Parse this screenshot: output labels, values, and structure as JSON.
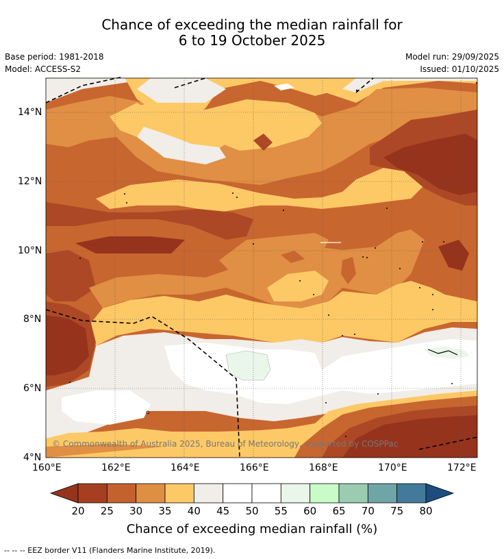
{
  "title_line1": "Chance of exceeding the median rainfall for",
  "title_line2": "6 to 19 October 2025",
  "base_period": "Base period: 1981-2018",
  "model": "Model: ACCESS-S2",
  "model_run": "Model run: 29/09/2025",
  "issued": "Issued: 01/10/2025",
  "copyright": "© Commonwealth of Australia 2025, Bureau of Meteorology, supported by COSPPac",
  "x_ticks": [
    "160°E",
    "162°E",
    "164°E",
    "166°E",
    "168°E",
    "170°E",
    "172°E"
  ],
  "y_ticks": [
    "14°N",
    "12°N",
    "10°N",
    "8°N",
    "6°N",
    "4°N"
  ],
  "colorbar": {
    "title": "Chance of exceeding median rainfall (%)",
    "labels": [
      "20",
      "25",
      "30",
      "35",
      "40",
      "45",
      "50",
      "55",
      "60",
      "65",
      "70",
      "75",
      "80"
    ],
    "colors": [
      "#a63f20",
      "#c4622e",
      "#df8f44",
      "#fdc966",
      "#f1ede8",
      "#ffffff",
      "#ffffff",
      "#e9f6e9",
      "#c9fbc9",
      "#9bccb2",
      "#6fa5a7",
      "#437a9c"
    ],
    "under_color": "#96331d",
    "over_color": "#1c4d80"
  },
  "footnote": "--  --  -- EEZ border V11 (Flanders Marine Institute, 2019).",
  "colors": {
    "c20": "#96331d",
    "c25": "#ad4826",
    "c30": "#c8662f",
    "c35": "#e08f44",
    "c40": "#fdc966",
    "c45": "#f1ede8",
    "c50": "#ffffff",
    "c55": "#e9f6e9"
  }
}
